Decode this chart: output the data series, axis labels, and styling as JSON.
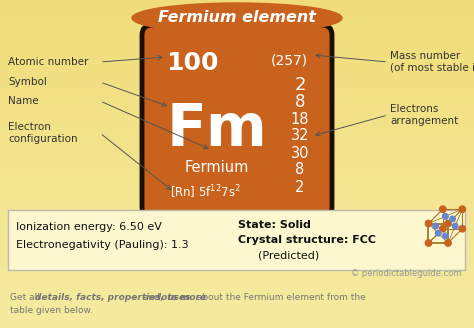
{
  "title": "Fermium element",
  "title_bg_color": "#c8621c",
  "title_text_color": "#ffffff",
  "bg_color_top": "#f0d070",
  "bg_color": "#f5e898",
  "box_bg_color": "#c8621c",
  "box_border_color": "#1a0f00",
  "atomic_number": "100",
  "mass_number": "(257)",
  "symbol": "Fm",
  "name": "Fermium",
  "electrons_arrangement": [
    "2",
    "8",
    "18",
    "32",
    "30",
    "8",
    "2"
  ],
  "info_line1": "Ionization energy: 6.50 eV",
  "info_line2": "Electronegativity (Pauling): 1.3",
  "info_line3": "State: Solid",
  "info_line4": "Crystal structure: FCC",
  "info_line4b": "(Predicted)",
  "copyright": "© periodictableguide.com",
  "label_color": "#333333",
  "arrow_color": "#555555",
  "info_box_bg": "#fdf7d0",
  "info_box_border": "#bbbbaa",
  "cube_edge_color": "#a07828",
  "cube_corner_color": "#c8621c",
  "cube_face_color": "#6688cc"
}
